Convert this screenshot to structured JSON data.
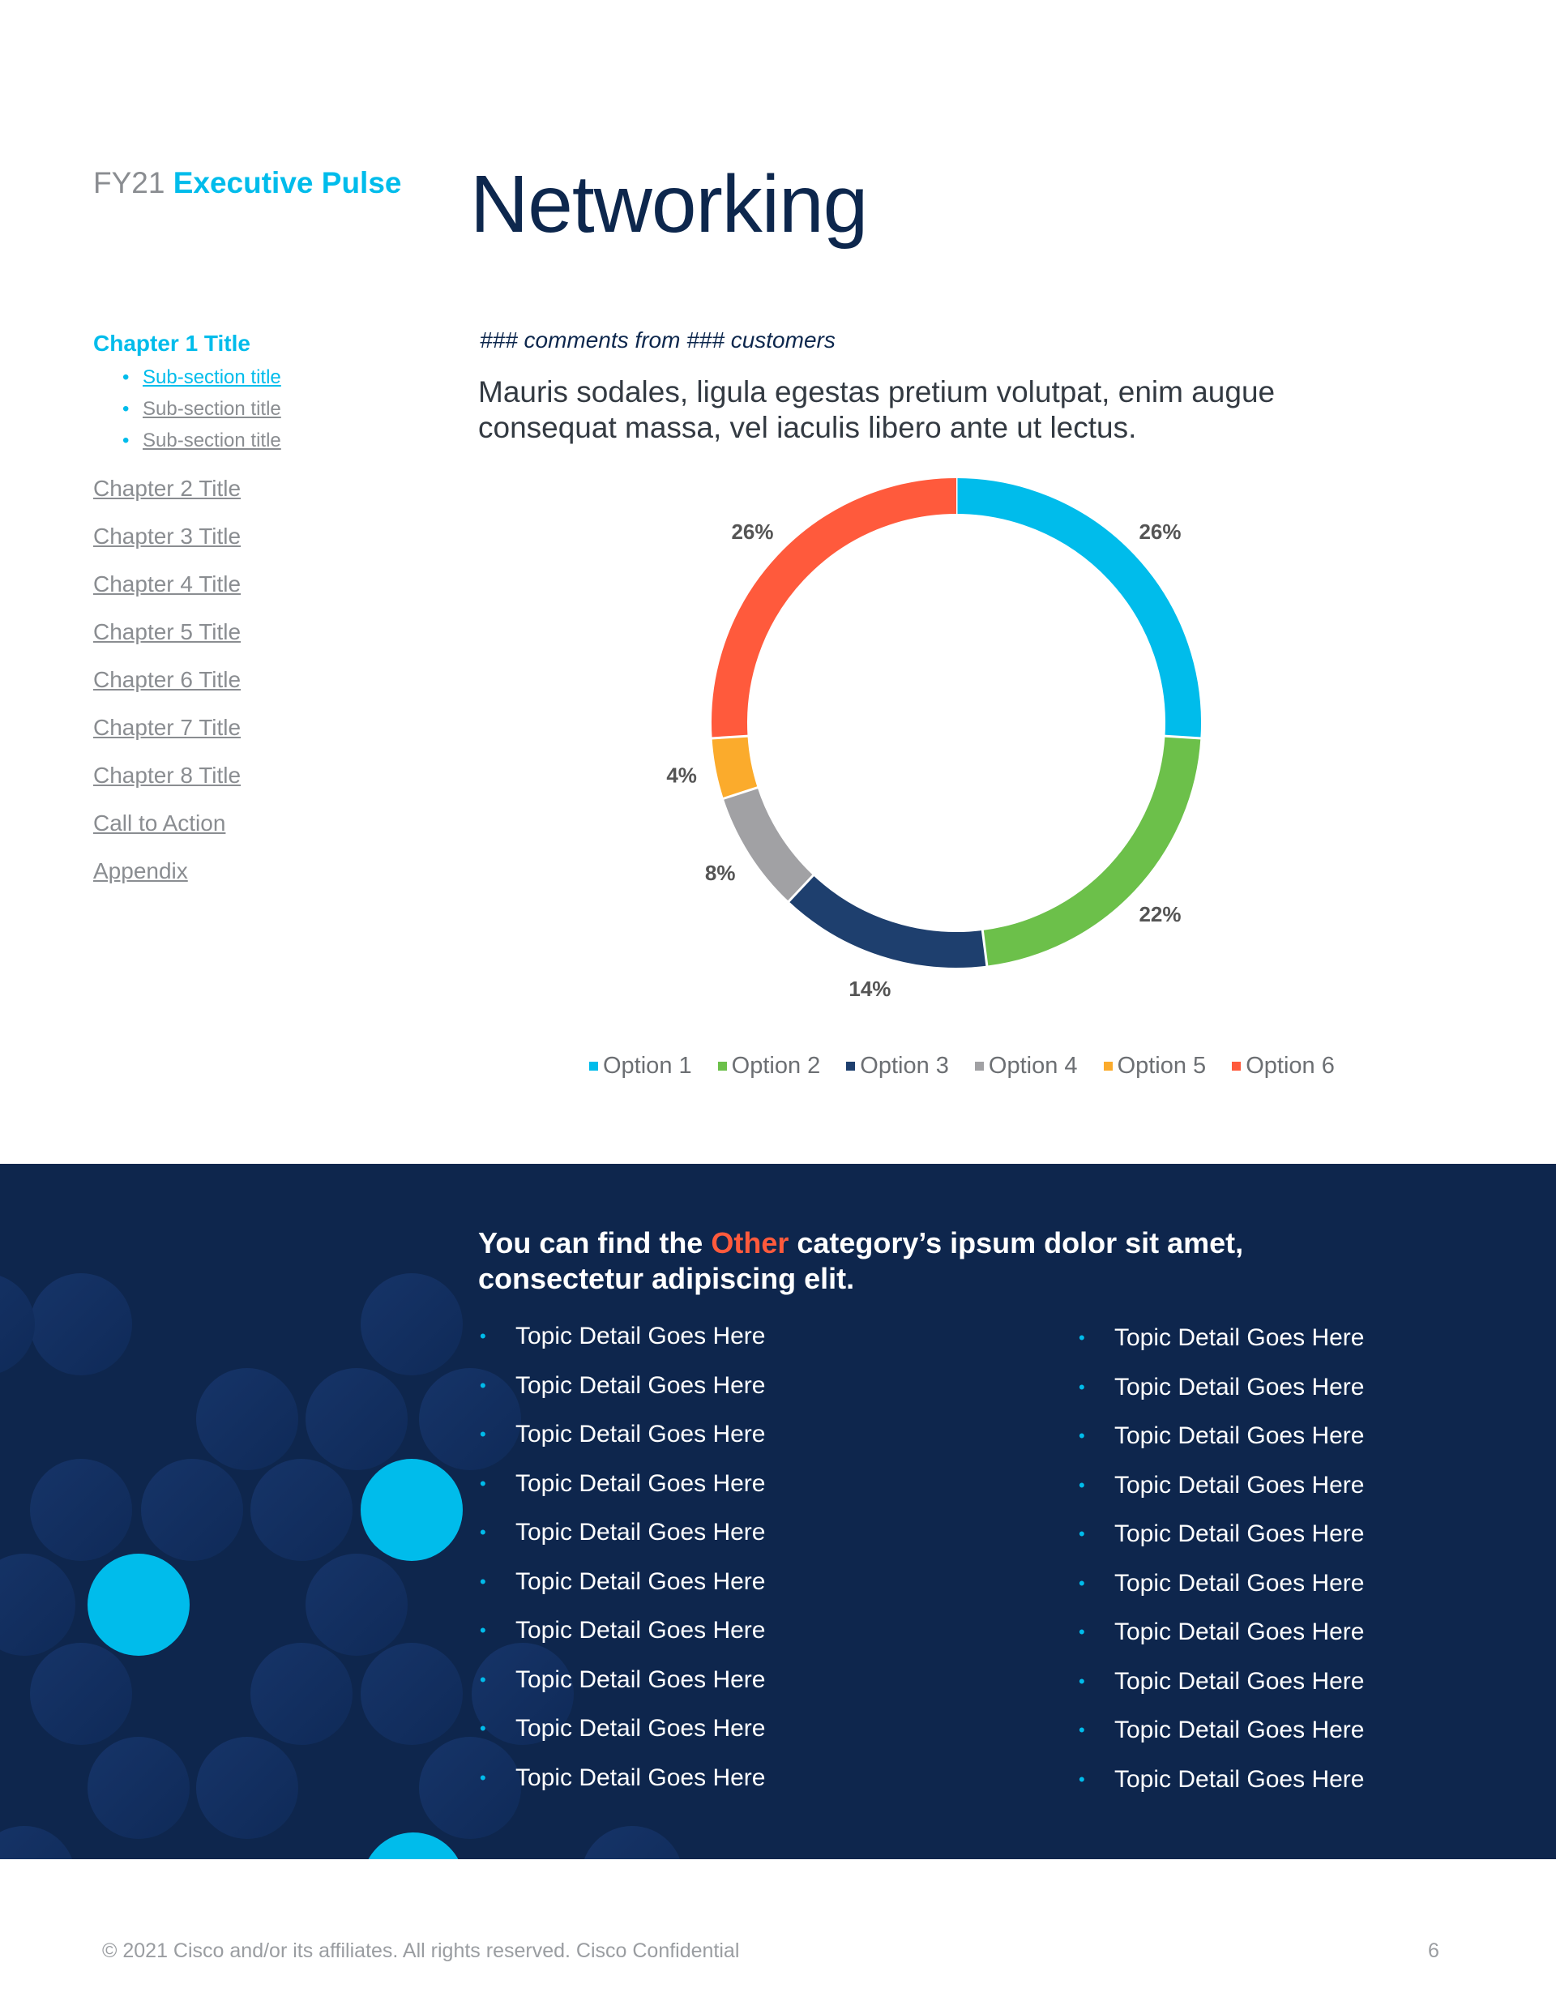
{
  "brand": {
    "prefix": "FY21",
    "name": "Executive Pulse"
  },
  "page_title": "Networking",
  "toc": {
    "active_chapter": "Chapter 1 Title",
    "subsections": [
      "Sub-section title",
      "Sub-section title",
      "Sub-section title"
    ],
    "chapters": [
      "Chapter 2 Title",
      "Chapter 3 Title",
      "Chapter 4 Title",
      "Chapter 5 Title",
      "Chapter 6 Title",
      "Chapter 7 Title",
      "Chapter 8 Title",
      "Call to Action",
      "Appendix"
    ]
  },
  "comments_line": "### comments from ### customers",
  "lead_text": "Mauris sodales, ligula egestas pretium volutpat, enim augue consequat massa, vel iaculis libero ante ut lectus.",
  "chart_data": {
    "type": "pie",
    "donut": true,
    "categories": [
      "Option 1",
      "Option 2",
      "Option 3",
      "Option 4",
      "Option 5",
      "Option 6"
    ],
    "values": [
      26,
      22,
      14,
      8,
      4,
      26
    ],
    "labels": [
      "26%",
      "22%",
      "14%",
      "8%",
      "4%",
      "26%"
    ],
    "colors": [
      "#00bceb",
      "#6cc04a",
      "#1e3f6e",
      "#a1a1a4",
      "#fbab2c",
      "#ff5a3c"
    ],
    "legend_position": "bottom"
  },
  "other_section": {
    "headline_before": "You can find the ",
    "headline_accent": "Other",
    "headline_after": " category’s ipsum dolor sit amet, consectetur adipiscing elit.",
    "accent_color": "#ff5a3c",
    "left_items": [
      "Topic Detail Goes Here",
      "Topic Detail Goes Here",
      "Topic Detail Goes Here",
      "Topic Detail Goes Here",
      "Topic Detail Goes Here",
      "Topic Detail Goes Here",
      "Topic Detail Goes Here",
      "Topic Detail Goes Here",
      "Topic Detail Goes Here",
      "Topic Detail Goes Here"
    ],
    "right_items": [
      "Topic Detail Goes Here",
      "Topic Detail Goes Here",
      "Topic Detail Goes Here",
      "Topic Detail Goes Here",
      "Topic Detail Goes Here",
      "Topic Detail Goes Here",
      "Topic Detail Goes Here",
      "Topic Detail Goes Here",
      "Topic Detail Goes Here",
      "Topic Detail Goes Here"
    ]
  },
  "footer": {
    "copyright": "© 2021 Cisco and/or its affiliates. All rights reserved.  Cisco Confidential",
    "page_number": "6"
  }
}
